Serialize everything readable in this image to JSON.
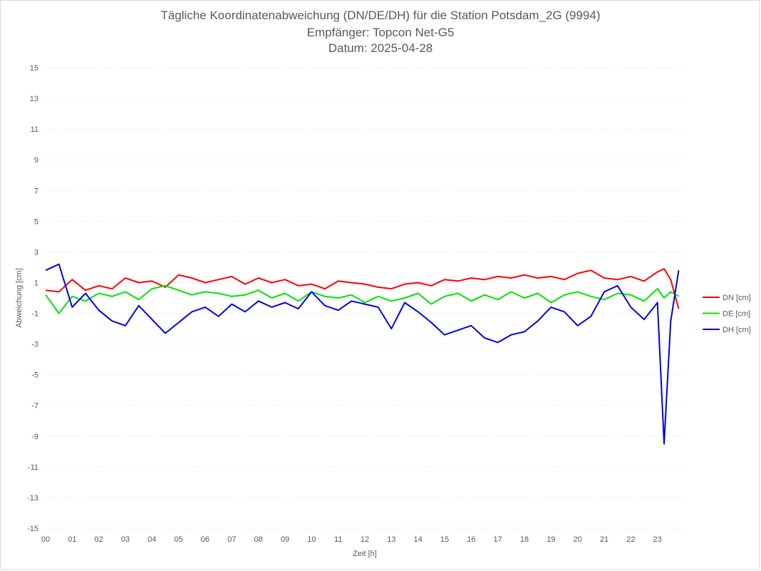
{
  "chart_data": {
    "type": "line",
    "title": "Tägliche Koordinatenabweichung (DN/DE/DH) für die Station Potsdam_2G (9994)",
    "subtitle": "Empfänger: Topcon Net-G5",
    "date_line": "Datum: 2025-04-28",
    "xlabel": "Zeit [h]",
    "ylabel": "Abweichung [cm]",
    "xlim": [
      0,
      24
    ],
    "ylim": [
      -15,
      15
    ],
    "x_ticks": [
      "00",
      "01",
      "02",
      "03",
      "04",
      "05",
      "06",
      "07",
      "08",
      "09",
      "10",
      "11",
      "12",
      "13",
      "14",
      "15",
      "16",
      "17",
      "18",
      "19",
      "20",
      "21",
      "22",
      "23"
    ],
    "y_ticks": [
      15,
      13,
      11,
      9,
      7,
      5,
      3,
      1,
      -1,
      -3,
      -5,
      -7,
      -9,
      -11,
      -13,
      -15
    ],
    "grid": "horizontal-dotted",
    "legend_position": "right",
    "x": [
      0,
      0.5,
      1,
      1.5,
      2,
      2.5,
      3,
      3.5,
      4,
      4.5,
      5,
      5.5,
      6,
      6.5,
      7,
      7.5,
      8,
      8.5,
      9,
      9.5,
      10,
      10.5,
      11,
      11.5,
      12,
      12.5,
      13,
      13.5,
      14,
      14.5,
      15,
      15.5,
      16,
      16.5,
      17,
      17.5,
      18,
      18.5,
      19,
      19.5,
      20,
      20.5,
      21,
      21.5,
      22,
      22.5,
      23,
      23.25,
      23.5,
      23.8
    ],
    "series": [
      {
        "name": "DN [cm]",
        "color": "#ff0000",
        "values": [
          0.5,
          0.4,
          1.2,
          0.5,
          0.8,
          0.6,
          1.3,
          1.0,
          1.1,
          0.7,
          1.5,
          1.3,
          1.0,
          1.2,
          1.4,
          0.9,
          1.3,
          1.0,
          1.2,
          0.8,
          0.9,
          0.6,
          1.1,
          1.0,
          0.9,
          0.7,
          0.6,
          0.9,
          1.0,
          0.8,
          1.2,
          1.1,
          1.3,
          1.2,
          1.4,
          1.3,
          1.5,
          1.3,
          1.4,
          1.2,
          1.6,
          1.8,
          1.3,
          1.2,
          1.4,
          1.1,
          1.7,
          1.9,
          1.2,
          -0.7
        ]
      },
      {
        "name": "DE [cm]",
        "color": "#00e600",
        "values": [
          0.2,
          -1.0,
          0.1,
          -0.2,
          0.3,
          0.1,
          0.4,
          -0.1,
          0.6,
          0.8,
          0.5,
          0.2,
          0.4,
          0.3,
          0.1,
          0.2,
          0.5,
          0.0,
          0.3,
          -0.2,
          0.4,
          0.1,
          0.0,
          0.2,
          -0.3,
          0.1,
          -0.2,
          0.0,
          0.3,
          -0.4,
          0.1,
          0.3,
          -0.2,
          0.2,
          -0.1,
          0.4,
          0.0,
          0.3,
          -0.3,
          0.2,
          0.4,
          0.1,
          -0.1,
          0.3,
          0.2,
          -0.2,
          0.6,
          0.0,
          0.4,
          0.1
        ]
      },
      {
        "name": "DH [cm]",
        "color": "#0000e6",
        "values": [
          1.8,
          2.2,
          -0.6,
          0.3,
          -0.8,
          -1.5,
          -1.8,
          -0.5,
          -1.4,
          -2.3,
          -1.6,
          -0.9,
          -0.6,
          -1.2,
          -0.4,
          -0.9,
          -0.2,
          -0.6,
          -0.3,
          -0.7,
          0.4,
          -0.5,
          -0.8,
          -0.2,
          -0.4,
          -0.6,
          -2.0,
          -0.3,
          -0.9,
          -1.6,
          -2.4,
          -2.1,
          -1.8,
          -2.6,
          -2.9,
          -2.4,
          -2.2,
          -1.5,
          -0.6,
          -0.9,
          -1.8,
          -1.2,
          0.4,
          0.8,
          -0.6,
          -1.4,
          -0.3,
          -9.5,
          -1.5,
          1.8
        ]
      }
    ]
  }
}
